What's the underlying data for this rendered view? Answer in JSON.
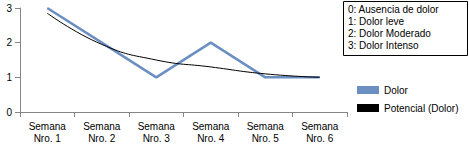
{
  "chart_data": {
    "type": "line",
    "categories": [
      "Semana Nro. 1",
      "Semana Nro. 2",
      "Semana Nro. 3",
      "Semana Nro. 4",
      "Semana Nro. 5",
      "Semana Nro. 6"
    ],
    "series": [
      {
        "name": "Dolor",
        "color": "#6b8fc3",
        "marker": "none",
        "line_style": "solid",
        "values": [
          3,
          2,
          1,
          2,
          1,
          1
        ]
      },
      {
        "name": "Potencial (Dolor)",
        "color": "#000000",
        "marker": "none",
        "line_style": "smooth",
        "values": [
          2.85,
          1.95,
          1.5,
          1.3,
          1.1,
          1.0
        ]
      }
    ],
    "ylim": [
      0,
      3
    ],
    "yticks": [
      0,
      1,
      2,
      3
    ],
    "grid": false,
    "legend": "right",
    "annotations": [
      "0: Ausencia de dolor",
      "1: Dolor leve",
      "2: Dolor Moderado",
      "3: Dolor Intenso"
    ]
  }
}
